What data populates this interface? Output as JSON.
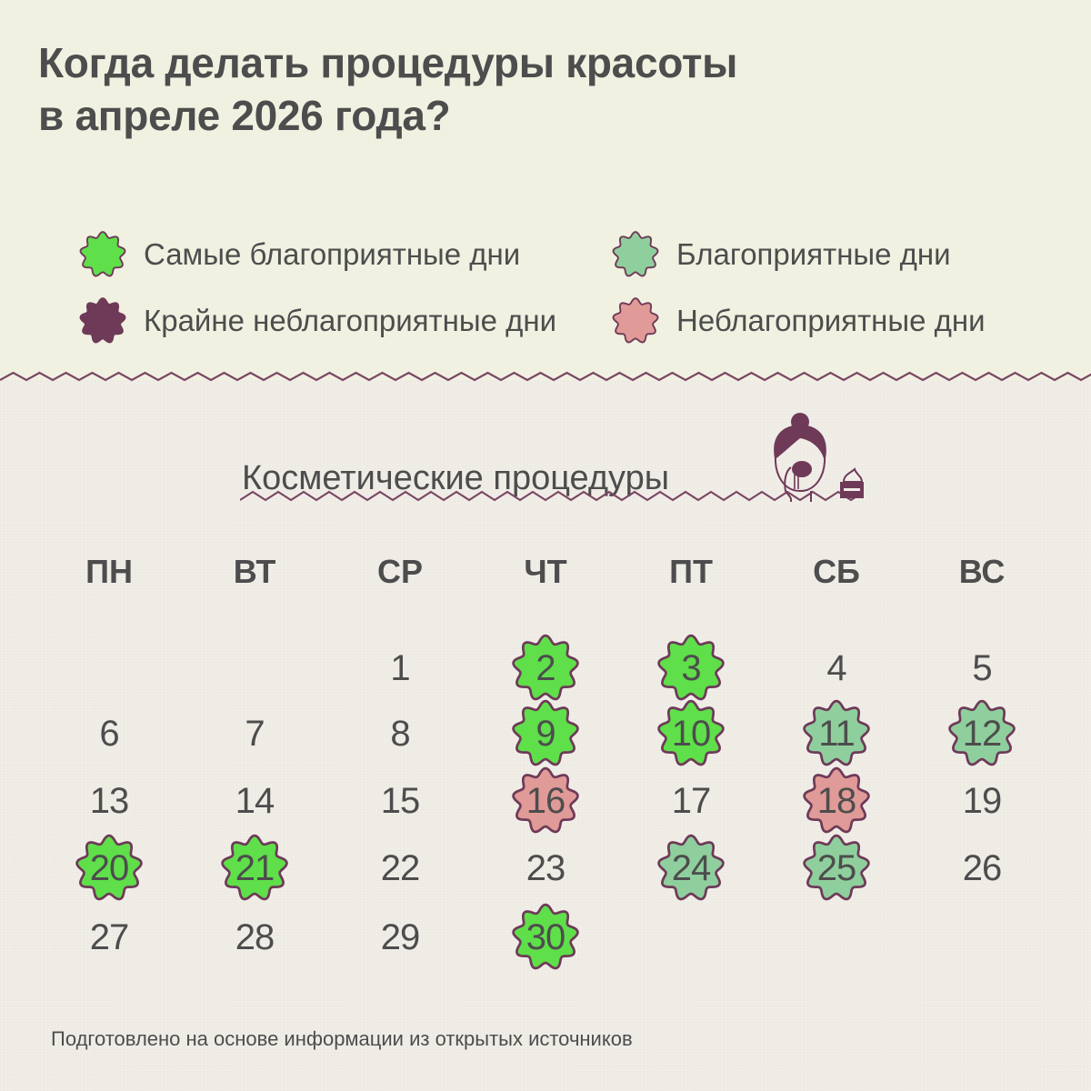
{
  "title": {
    "line1": "Когда делать процедуры красоты",
    "line2": "в апреле 2026 года?"
  },
  "colors": {
    "most_favorable": "#5fdf4a",
    "favorable": "#8fcf9d",
    "extremely_unfavorable": "#6e3a58",
    "unfavorable": "#e09a97",
    "outline": "#6e3a58",
    "text": "#4d4d4d"
  },
  "legend": [
    {
      "key": "most_favorable",
      "label": "Самые благоприятные дни",
      "icon": "flower-badge-bright-green-icon"
    },
    {
      "key": "favorable",
      "label": "Благоприятные дни",
      "icon": "flower-badge-light-green-icon"
    },
    {
      "key": "extremely_unfavorable",
      "label": "Крайне неблагоприятные дни",
      "icon": "flower-badge-plum-icon"
    },
    {
      "key": "unfavorable",
      "label": "Неблагоприятные дни",
      "icon": "flower-badge-pink-icon"
    }
  ],
  "section": {
    "title": "Косметические процедуры",
    "icon": "woman-skincare-icon"
  },
  "calendar": {
    "month": "апрель 2026",
    "weekdays": [
      "ПН",
      "ВТ",
      "СР",
      "ЧТ",
      "ПТ",
      "СБ",
      "ВС"
    ],
    "first_weekday_index": 2,
    "days_in_month": 30,
    "days": [
      {
        "day": "1",
        "type": null
      },
      {
        "day": "2",
        "type": "most_favorable"
      },
      {
        "day": "3",
        "type": "most_favorable"
      },
      {
        "day": "4",
        "type": null
      },
      {
        "day": "5",
        "type": null
      },
      {
        "day": "6",
        "type": null
      },
      {
        "day": "7",
        "type": null
      },
      {
        "day": "8",
        "type": null
      },
      {
        "day": "9",
        "type": "most_favorable"
      },
      {
        "day": "10",
        "type": "most_favorable"
      },
      {
        "day": "11",
        "type": "favorable"
      },
      {
        "day": "12",
        "type": "favorable"
      },
      {
        "day": "13",
        "type": null
      },
      {
        "day": "14",
        "type": null
      },
      {
        "day": "15",
        "type": null
      },
      {
        "day": "16",
        "type": "unfavorable"
      },
      {
        "day": "17",
        "type": null
      },
      {
        "day": "18",
        "type": "unfavorable"
      },
      {
        "day": "19",
        "type": null
      },
      {
        "day": "20",
        "type": "most_favorable"
      },
      {
        "day": "21",
        "type": "most_favorable"
      },
      {
        "day": "22",
        "type": null
      },
      {
        "day": "23",
        "type": null
      },
      {
        "day": "24",
        "type": "favorable"
      },
      {
        "day": "25",
        "type": "favorable"
      },
      {
        "day": "26",
        "type": null
      },
      {
        "day": "27",
        "type": null
      },
      {
        "day": "28",
        "type": null
      },
      {
        "day": "29",
        "type": null
      },
      {
        "day": "30",
        "type": "most_favorable"
      }
    ]
  },
  "footer": {
    "note": "Подготовлено на основе информации из открытых источников"
  }
}
